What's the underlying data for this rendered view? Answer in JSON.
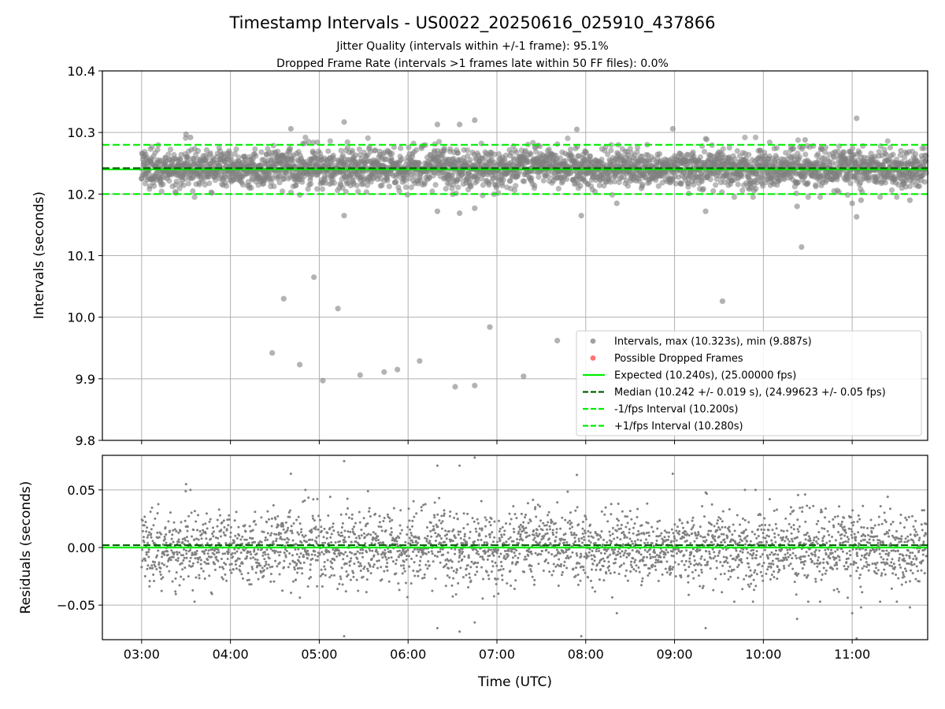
{
  "chart_data": {
    "type": "scatter",
    "title": "Timestamp Intervals - US0022_20250616_025910_437866",
    "subtitle_lines": [
      "Jitter Quality (intervals within +/-1 frame): 95.1%",
      "Dropped Frame Rate (intervals >1 frames late within 50 FF files): 0.0%"
    ],
    "xlabel": "Time (UTC)",
    "x_ticks": [
      "03:00",
      "04:00",
      "05:00",
      "06:00",
      "07:00",
      "08:00",
      "09:00",
      "10:00",
      "11:00"
    ],
    "x_range_hours": [
      2.558,
      11.85
    ],
    "top_panel": {
      "ylabel": "Intervals (seconds)",
      "ylim": [
        9.8,
        10.4
      ],
      "y_ticks": [
        "9.8",
        "9.9",
        "10.0",
        "10.1",
        "10.2",
        "10.3",
        "10.4"
      ],
      "grid": true,
      "expected": 10.24,
      "median": 10.242,
      "minus_1fps": 10.2,
      "plus_1fps": 10.28,
      "outliers": [
        {
          "t": 3.0,
          "v": 10.225
        },
        {
          "t": 3.5,
          "v": 10.297
        },
        {
          "t": 3.55,
          "v": 10.292
        },
        {
          "t": 4.47,
          "v": 9.942
        },
        {
          "t": 4.6,
          "v": 10.03
        },
        {
          "t": 4.68,
          "v": 10.306
        },
        {
          "t": 4.78,
          "v": 9.923
        },
        {
          "t": 4.94,
          "v": 10.065
        },
        {
          "t": 5.04,
          "v": 9.897
        },
        {
          "t": 5.21,
          "v": 10.014
        },
        {
          "t": 5.28,
          "v": 10.317
        },
        {
          "t": 5.28,
          "v": 10.165
        },
        {
          "t": 5.46,
          "v": 9.906
        },
        {
          "t": 5.73,
          "v": 9.911
        },
        {
          "t": 5.88,
          "v": 9.915
        },
        {
          "t": 6.13,
          "v": 9.929
        },
        {
          "t": 6.33,
          "v": 10.313
        },
        {
          "t": 6.33,
          "v": 10.172
        },
        {
          "t": 6.53,
          "v": 9.887
        },
        {
          "t": 6.58,
          "v": 10.313
        },
        {
          "t": 6.58,
          "v": 10.169
        },
        {
          "t": 6.75,
          "v": 10.32
        },
        {
          "t": 6.75,
          "v": 10.177
        },
        {
          "t": 6.75,
          "v": 9.889
        },
        {
          "t": 6.92,
          "v": 9.984
        },
        {
          "t": 7.3,
          "v": 9.904
        },
        {
          "t": 7.68,
          "v": 9.962
        },
        {
          "t": 7.9,
          "v": 10.305
        },
        {
          "t": 7.95,
          "v": 10.165
        },
        {
          "t": 8.35,
          "v": 10.185
        },
        {
          "t": 8.45,
          "v": 9.948
        },
        {
          "t": 8.98,
          "v": 10.306
        },
        {
          "t": 9.35,
          "v": 10.172
        },
        {
          "t": 9.54,
          "v": 10.026
        },
        {
          "t": 10.38,
          "v": 10.18
        },
        {
          "t": 10.43,
          "v": 10.114
        },
        {
          "t": 10.47,
          "v": 10.288
        },
        {
          "t": 11.0,
          "v": 10.185
        },
        {
          "t": 11.05,
          "v": 10.323
        },
        {
          "t": 11.05,
          "v": 10.163
        },
        {
          "t": 11.1,
          "v": 10.19
        },
        {
          "t": 11.65,
          "v": 10.19
        }
      ]
    },
    "bottom_panel": {
      "ylabel": "Residuals (seconds)",
      "ylim": [
        -0.08,
        0.08
      ],
      "y_ticks": [
        "−0.05",
        "0.00",
        "0.05"
      ],
      "grid": true
    },
    "legend": {
      "placement": "lower right",
      "entries": [
        {
          "label": "Intervals, max (10.323s), min (9.887s)",
          "style": "marker",
          "color": "#808080"
        },
        {
          "label": "Possible Dropped Frames",
          "style": "marker",
          "color": "#ff4444"
        },
        {
          "label": "Expected (10.240s), (25.00000 fps)",
          "style": "solid",
          "color": "#00ee00"
        },
        {
          "label": "Median (10.242 +/- 0.019 s), (24.99623 +/- 0.05 fps)",
          "style": "dashed",
          "color": "#006400"
        },
        {
          "label": "-1/fps Interval (10.200s)",
          "style": "dashed",
          "color": "#00ee00"
        },
        {
          "label": "+1/fps Interval (10.280s)",
          "style": "dashed",
          "color": "#00ee00"
        }
      ]
    },
    "series": [
      {
        "name": "Intervals, max (10.323s), min (9.887s)",
        "x_start": "03:00",
        "x_end": "11:50",
        "count": 3100,
        "center": 10.242,
        "spread_sd": 0.019
      }
    ],
    "colors": {
      "points": "#808080",
      "expected": "#00ee00",
      "median": "#006400",
      "dropped": "#ff4444"
    }
  }
}
